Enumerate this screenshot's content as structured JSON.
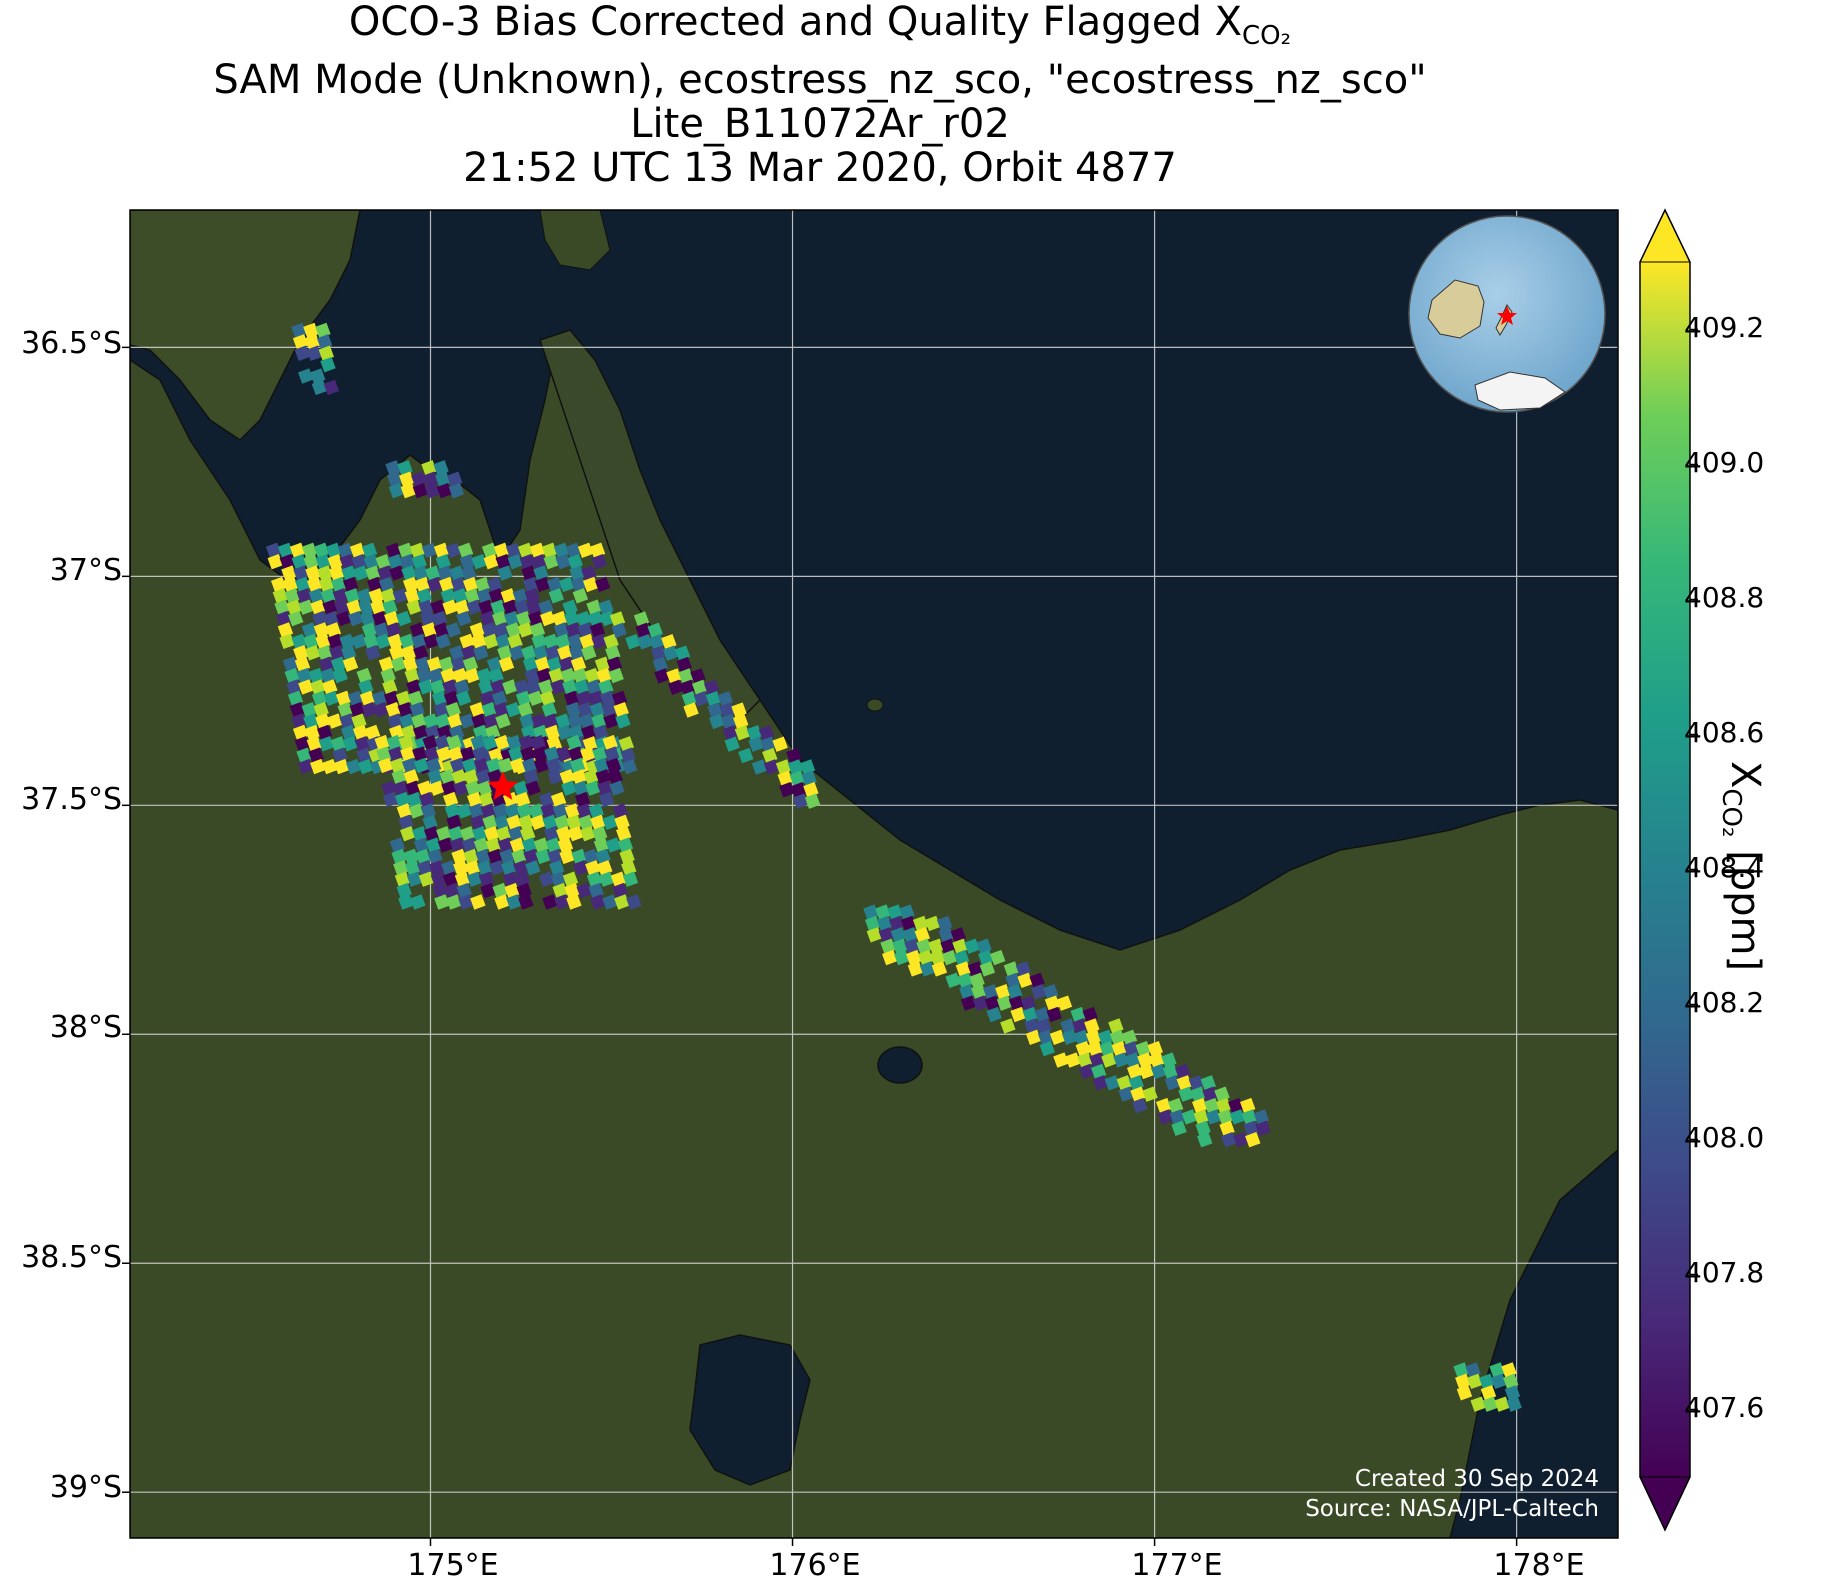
{
  "title": {
    "line1_prefix": "OCO-3 Bias Corrected and Quality Flagged X",
    "line1_sub": "CO₂",
    "line2": "SAM Mode (Unknown), ecostress_nz_sco, \"ecostress_nz_sco\"",
    "line3": "Lite_B11072Ar_r02",
    "line4": "21:52 UTC 13 Mar 2020, Orbit 4877"
  },
  "map": {
    "lon_range": [
      174.17,
      178.28
    ],
    "lat_range": [
      -39.1,
      -36.2
    ],
    "lat_ticks": [
      {
        "value": -36.5,
        "label": "36.5°S"
      },
      {
        "value": -37.0,
        "label": "37°S"
      },
      {
        "value": -37.5,
        "label": "37.5°S"
      },
      {
        "value": -38.0,
        "label": "38°S"
      },
      {
        "value": -38.5,
        "label": "38.5°S"
      },
      {
        "value": -39.0,
        "label": "39°S"
      }
    ],
    "lon_ticks": [
      {
        "value": 175.0,
        "label": "175°E"
      },
      {
        "value": 176.0,
        "label": "176°E"
      },
      {
        "value": 177.0,
        "label": "177°E"
      },
      {
        "value": 178.0,
        "label": "178°E"
      }
    ],
    "grid": true,
    "basemap": "satellite imagery (ocean dark blue, land green)",
    "target_marker": {
      "lon": 175.2,
      "lat": -37.46,
      "symbol": "star",
      "color": "#ff0000"
    },
    "inset_globe": {
      "position": "top-right",
      "marker": "red star over New Zealand"
    },
    "soundings": [
      {
        "name": "northwest-cluster",
        "lon_min": 174.62,
        "lon_max": 174.7,
        "lat_top": -36.45,
        "lat_bottom": -36.6
      },
      {
        "name": "north-coromandel-cluster",
        "lon_min": 174.88,
        "lon_max": 175.05,
        "lat_top": -36.75,
        "lat_bottom": -36.82
      },
      {
        "name": "hauraki-swath",
        "lon_min": 174.55,
        "lon_max": 175.45,
        "lat_top": -36.93,
        "lat_bottom": -37.45
      },
      {
        "name": "waikato-swath",
        "lon_min": 174.85,
        "lon_max": 175.5,
        "lat_top": -37.35,
        "lat_bottom": -37.72
      },
      {
        "name": "coromandel-swath",
        "lon_min": 175.5,
        "lon_max": 175.98,
        "lat_top": -37.08,
        "lat_bottom": -37.5
      },
      {
        "name": "bay-of-plenty-swath",
        "lon_min": 176.2,
        "lon_max": 177.2,
        "lat_top": -37.72,
        "lat_bottom": -38.27
      },
      {
        "name": "gisborne-cluster",
        "lon_min": 177.83,
        "lon_max": 177.97,
        "lat_top": -38.72,
        "lat_bottom": -38.82
      }
    ]
  },
  "colorbar": {
    "colormap": "viridis",
    "range": [
      407.5,
      409.3
    ],
    "ticks": [
      "409.2",
      "409.0",
      "408.8",
      "408.6",
      "408.4",
      "408.2",
      "408.0",
      "407.8",
      "407.6"
    ],
    "tick_values": [
      409.2,
      409.0,
      408.8,
      408.6,
      408.4,
      408.2,
      408.0,
      407.8,
      407.6
    ],
    "label_prefix": "X",
    "label_sub": "CO₂",
    "label_suffix": " [ppm]",
    "extend": "both"
  },
  "credits": {
    "created": "Created 30 Sep 2024",
    "source": "Source: NASA/JPL-Caltech"
  }
}
